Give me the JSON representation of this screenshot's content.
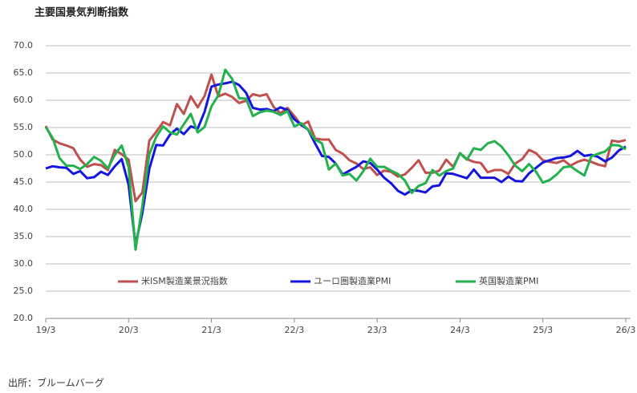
{
  "chart_data": {
    "type": "line",
    "title": "主要国景気判断指数",
    "source": "出所：ブルームバーグ",
    "categories": [
      "19/3",
      null,
      null,
      null,
      null,
      null,
      null,
      null,
      null,
      null,
      null,
      null,
      "20/3",
      null,
      null,
      null,
      null,
      null,
      null,
      null,
      null,
      null,
      null,
      null,
      "21/3",
      null,
      null,
      null,
      null,
      null,
      null,
      null,
      null,
      null,
      null,
      null,
      "22/3",
      null,
      null,
      null,
      null,
      null,
      null,
      null,
      null,
      null,
      null,
      null,
      "23/3",
      null,
      null,
      null,
      null,
      null,
      null,
      null,
      null,
      null,
      null,
      null,
      "24/3",
      null,
      null,
      null,
      null,
      null,
      null,
      null,
      null,
      null,
      null,
      null,
      "25/3",
      null,
      null,
      null,
      null,
      null,
      null,
      null,
      null,
      null,
      null,
      null,
      "26/3"
    ],
    "series": [
      {
        "name": "米ISM製造業景況指数",
        "color": "#c0504d",
        "values": [
          55.3,
          52.8,
          52.1,
          51.7,
          51.2,
          49.1,
          47.8,
          48.3,
          48.1,
          47.2,
          50.9,
          50.1,
          49.1,
          41.5,
          43.1,
          52.6,
          54.2,
          56.0,
          55.4,
          59.3,
          57.5,
          60.7,
          58.7,
          60.8,
          64.7,
          60.7,
          61.2,
          60.6,
          59.5,
          59.9,
          61.1,
          60.8,
          61.1,
          58.8,
          57.6,
          58.6,
          57.1,
          55.4,
          56.1,
          53.0,
          52.8,
          52.8,
          50.9,
          50.2,
          49.0,
          48.4,
          47.4,
          47.7,
          46.3,
          47.1,
          46.9,
          46.0,
          46.4,
          47.6,
          49.0,
          46.7,
          46.7,
          47.1,
          49.1,
          47.8,
          50.3,
          49.2,
          48.7,
          48.5,
          46.8,
          47.2,
          47.2,
          46.5,
          48.4,
          49.2,
          50.9,
          50.3,
          49.0,
          48.7,
          48.5,
          49.0,
          48.0,
          48.7,
          49.1,
          48.7,
          48.2,
          47.9,
          52.6,
          52.4,
          52.7
        ]
      },
      {
        "name": "ユーロ圏製造業PMI",
        "color": "#1414e0",
        "values": [
          47.5,
          47.9,
          47.7,
          47.6,
          46.5,
          47.0,
          45.7,
          45.9,
          46.9,
          46.3,
          47.9,
          49.2,
          44.5,
          33.4,
          39.4,
          47.4,
          51.8,
          51.7,
          53.7,
          54.8,
          53.8,
          55.2,
          54.8,
          57.9,
          62.5,
          62.9,
          63.1,
          63.4,
          62.8,
          61.4,
          58.6,
          58.3,
          58.4,
          58.0,
          58.7,
          58.2,
          56.5,
          55.5,
          54.6,
          52.1,
          49.8,
          49.6,
          48.4,
          46.4,
          47.1,
          47.8,
          48.8,
          48.5,
          47.3,
          45.8,
          44.8,
          43.4,
          42.7,
          43.5,
          43.4,
          43.1,
          44.2,
          44.4,
          46.6,
          46.5,
          46.1,
          45.7,
          47.3,
          45.8,
          45.8,
          45.8,
          45.0,
          46.0,
          45.2,
          45.1,
          46.6,
          47.6,
          48.6,
          49.0,
          49.4,
          49.5,
          49.8,
          50.7,
          49.8,
          50.0,
          49.6,
          48.8,
          49.5,
          50.8,
          51.5
        ]
      },
      {
        "name": "英国製造業PMI",
        "color": "#22b14c",
        "values": [
          55.1,
          53.1,
          49.4,
          48.0,
          48.0,
          47.4,
          48.3,
          49.6,
          48.9,
          47.5,
          50.0,
          51.7,
          47.8,
          32.6,
          40.7,
          50.1,
          53.3,
          55.2,
          54.1,
          53.7,
          55.6,
          57.5,
          54.1,
          55.1,
          58.9,
          60.9,
          65.6,
          63.9,
          60.4,
          60.3,
          57.1,
          57.8,
          58.1,
          57.9,
          57.3,
          58.0,
          55.2,
          55.8,
          54.6,
          52.8,
          52.1,
          47.3,
          48.4,
          46.2,
          46.5,
          45.3,
          47.0,
          49.3,
          47.8,
          47.8,
          47.1,
          46.5,
          45.3,
          43.0,
          44.3,
          44.8,
          47.2,
          46.2,
          47.0,
          47.5,
          50.3,
          49.1,
          51.2,
          50.9,
          52.1,
          52.5,
          51.5,
          49.9,
          48.0,
          47.0,
          48.3,
          46.9,
          44.9,
          45.4,
          46.4,
          47.7,
          47.9,
          47.0,
          46.2,
          49.7,
          50.2,
          50.6,
          51.8,
          51.7,
          51.0
        ]
      }
    ],
    "ylim": [
      20,
      70
    ],
    "yticks": [
      {
        "value": 20,
        "label": "20.0"
      },
      {
        "value": 25,
        "label": "25.0"
      },
      {
        "value": 30,
        "label": "30.0"
      },
      {
        "value": 35,
        "label": "35.0"
      },
      {
        "value": 40,
        "label": "40.0"
      },
      {
        "value": 45,
        "label": "45.0"
      },
      {
        "value": 50,
        "label": "50.0"
      },
      {
        "value": 55,
        "label": "55.0"
      },
      {
        "value": 60,
        "label": "60.0"
      },
      {
        "value": 65,
        "label": "65.0"
      },
      {
        "value": 70,
        "label": "70.0"
      }
    ],
    "grid": true
  }
}
